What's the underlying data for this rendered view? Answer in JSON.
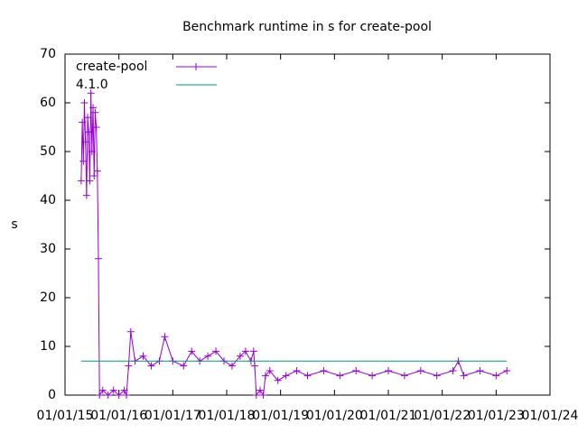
{
  "chart_data": {
    "type": "line",
    "title": "Benchmark runtime in s for create-pool",
    "y_label": "s",
    "xlim": [
      2015,
      2024
    ],
    "xticks": [
      {
        "value": 2015,
        "label": "01/01/15"
      },
      {
        "value": 2016,
        "label": "01/01/16"
      },
      {
        "value": 2017,
        "label": "01/01/17"
      },
      {
        "value": 2018,
        "label": "01/01/18"
      },
      {
        "value": 2019,
        "label": "01/01/19"
      },
      {
        "value": 2020,
        "label": "01/01/20"
      },
      {
        "value": 2021,
        "label": "01/01/21"
      },
      {
        "value": 2022,
        "label": "01/01/22"
      },
      {
        "value": 2023,
        "label": "01/01/23"
      },
      {
        "value": 2024,
        "label": "01/01/24"
      }
    ],
    "ylim": [
      0,
      70
    ],
    "yticks": [
      0,
      10,
      20,
      30,
      40,
      50,
      60,
      70
    ],
    "legend": "top-left",
    "series": [
      {
        "name": "create-pool",
        "color": "#9400d3",
        "markers": true,
        "x": [
          2015.3,
          2015.32,
          2015.34,
          2015.36,
          2015.38,
          2015.4,
          2015.42,
          2015.44,
          2015.46,
          2015.48,
          2015.5,
          2015.52,
          2015.54,
          2015.56,
          2015.58,
          2015.6,
          2015.62,
          2015.64,
          2015.7,
          2015.8,
          2015.9,
          2016.0,
          2016.1,
          2016.14,
          2016.18,
          2016.22,
          2016.3,
          2016.45,
          2016.6,
          2016.75,
          2016.85,
          2017.0,
          2017.2,
          2017.35,
          2017.5,
          2017.65,
          2017.8,
          2017.95,
          2018.1,
          2018.25,
          2018.35,
          2018.45,
          2018.5,
          2018.52,
          2018.55,
          2018.62,
          2018.68,
          2018.72,
          2018.8,
          2018.95,
          2019.1,
          2019.3,
          2019.5,
          2019.8,
          2020.1,
          2020.4,
          2020.7,
          2021.0,
          2021.3,
          2021.6,
          2021.9,
          2022.2,
          2022.3,
          2022.4,
          2022.7,
          2023.0,
          2023.2
        ],
        "values": [
          44,
          56,
          48,
          60,
          52,
          41,
          57,
          54,
          44,
          62,
          50,
          59,
          45,
          58,
          55,
          46,
          28,
          0,
          1,
          0,
          1,
          0,
          1,
          0,
          6,
          13,
          7,
          8,
          6,
          7,
          12,
          7,
          6,
          9,
          7,
          8,
          9,
          7,
          6,
          8,
          9,
          7,
          9,
          6,
          0,
          1,
          0,
          4,
          5,
          3,
          4,
          5,
          4,
          5,
          4,
          5,
          4,
          5,
          4,
          5,
          4,
          5,
          7,
          4,
          5,
          4,
          5
        ]
      },
      {
        "name": "4.1.0",
        "color": "#009e73",
        "markers": false,
        "x": [
          2015.3,
          2023.2
        ],
        "values": [
          7,
          7
        ]
      }
    ]
  }
}
